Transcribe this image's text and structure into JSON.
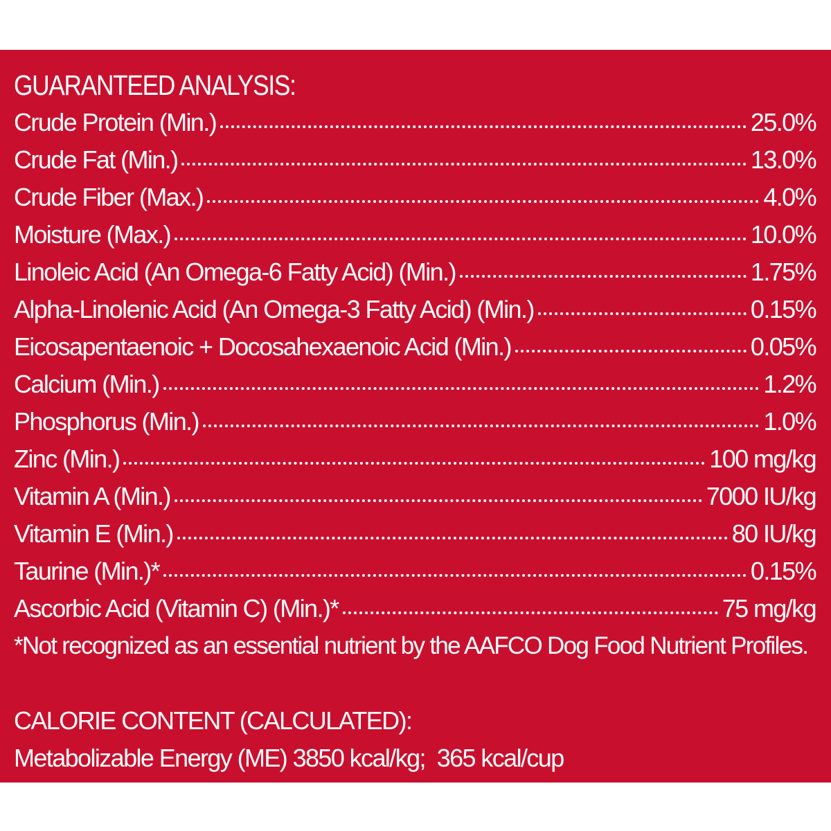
{
  "colors": {
    "panel_background": "#c8102e",
    "text": "#ffffff",
    "page_background": "#ffffff"
  },
  "guaranteed_analysis": {
    "heading": "GUARANTEED ANALYSIS:",
    "rows": [
      {
        "label": "Crude Protein (Min.)",
        "value": "25.0%"
      },
      {
        "label": "Crude Fat (Min.)",
        "value": "13.0%"
      },
      {
        "label": "Crude Fiber (Max.)",
        "value": "4.0%"
      },
      {
        "label": "Moisture (Max.)",
        "value": "10.0%"
      },
      {
        "label": "Linoleic Acid (An Omega-6 Fatty Acid) (Min.)",
        "value": "1.75%"
      },
      {
        "label": "Alpha-Linolenic Acid (An Omega-3 Fatty Acid) (Min.)",
        "value": "0.15%"
      },
      {
        "label": "Eicosapentaenoic + Docosahexaenoic Acid (Min.)",
        "value": "0.05%"
      },
      {
        "label": "Calcium (Min.)",
        "value": "1.2%"
      },
      {
        "label": "Phosphorus (Min.)",
        "value": "1.0%"
      },
      {
        "label": "Zinc (Min.)",
        "value": "100 mg/kg"
      },
      {
        "label": "Vitamin A (Min.)",
        "value": "7000 IU/kg"
      },
      {
        "label": "Vitamin E (Min.)",
        "value": "80 IU/kg"
      },
      {
        "label": "Taurine (Min.)*",
        "value": "0.15%"
      },
      {
        "label": "Ascorbic Acid (Vitamin C) (Min.)*",
        "value": "75 mg/kg"
      }
    ],
    "footnote": "*Not recognized as an essential nutrient by the AAFCO Dog Food Nutrient Profiles."
  },
  "calorie_content": {
    "heading": "CALORIE CONTENT (CALCULATED):",
    "line": "Metabolizable Energy (ME) 3850 kcal/kg;  365 kcal/cup"
  }
}
